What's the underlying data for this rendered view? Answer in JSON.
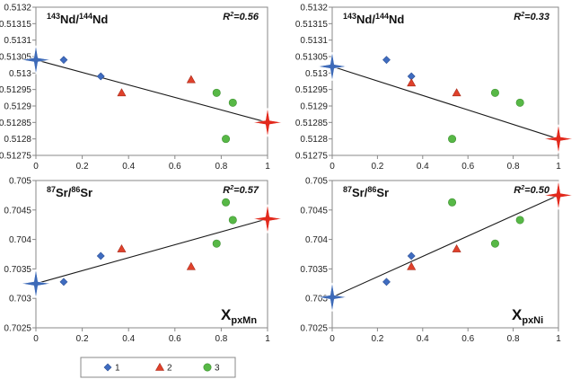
{
  "colors": {
    "series1": "#3f6cc0",
    "series2": "#e0412b",
    "series3": "#57b846",
    "star_endmember": "#3d6ab8",
    "star_other": "#e2291c",
    "line": "#1a1a1a",
    "frame": "#888888"
  },
  "legend": {
    "placement": "bottom-center",
    "items": [
      {
        "label": "1",
        "marker": "diamond"
      },
      {
        "label": "2",
        "marker": "triangle"
      },
      {
        "label": "3",
        "marker": "circle"
      }
    ]
  },
  "chart_data": [
    {
      "type": "scatter",
      "title_parts": {
        "pre1": "143",
        "mid": "Nd/",
        "pre2": "144",
        "post": "Nd"
      },
      "r2": "R2=0.56",
      "xlabel": "",
      "xlim": [
        0,
        1
      ],
      "ylim": [
        0.51275,
        0.5132
      ],
      "x_ticks": [
        "0",
        "0.2",
        "0.4",
        "0.6",
        "0.8",
        "1"
      ],
      "y_ticks": [
        "0.51275",
        "0.5128",
        "0.51285",
        "0.5129",
        "0.51295",
        "0.513",
        "0.51305",
        "0.5131",
        "0.51315",
        "0.5132"
      ],
      "series": [
        {
          "marker": "diamond",
          "points": [
            [
              0.12,
              0.51304
            ],
            [
              0.28,
              0.51299
            ]
          ]
        },
        {
          "marker": "triangle",
          "points": [
            [
              0.37,
              0.51294
            ],
            [
              0.67,
              0.51298
            ]
          ]
        },
        {
          "marker": "circle",
          "points": [
            [
              0.78,
              0.51294
            ],
            [
              0.85,
              0.51291
            ],
            [
              0.82,
              0.5128
            ]
          ]
        }
      ],
      "stars": [
        {
          "x": 0,
          "y": 0.51304,
          "kind": "blue"
        },
        {
          "x": 1,
          "y": 0.51285,
          "kind": "red"
        }
      ],
      "trend": {
        "x": [
          0,
          1
        ],
        "y": [
          0.51304,
          0.51285
        ]
      }
    },
    {
      "type": "scatter",
      "title_parts": {
        "pre1": "143",
        "mid": "Nd/",
        "pre2": "144",
        "post": "Nd"
      },
      "r2": "R2=0.33",
      "xlabel": "",
      "xlim": [
        0,
        1
      ],
      "ylim": [
        0.51275,
        0.5132
      ],
      "x_ticks": [
        "0",
        "0.2",
        "0.4",
        "0.6",
        "0.8",
        "1"
      ],
      "y_ticks": [
        "0.51275",
        "0.5128",
        "0.51285",
        "0.5129",
        "0.51295",
        "0.513",
        "0.51305",
        "0.5131",
        "0.51315",
        "0.5132"
      ],
      "series": [
        {
          "marker": "diamond",
          "points": [
            [
              0.24,
              0.51304
            ],
            [
              0.35,
              0.51299
            ]
          ]
        },
        {
          "marker": "triangle",
          "points": [
            [
              0.35,
              0.51297
            ],
            [
              0.55,
              0.51294
            ]
          ]
        },
        {
          "marker": "circle",
          "points": [
            [
              0.53,
              0.5128
            ],
            [
              0.72,
              0.51294
            ],
            [
              0.83,
              0.51291
            ]
          ]
        }
      ],
      "stars": [
        {
          "x": 0,
          "y": 0.51302,
          "kind": "blue"
        },
        {
          "x": 1,
          "y": 0.5128,
          "kind": "red"
        }
      ],
      "trend": {
        "x": [
          0,
          1
        ],
        "y": [
          0.51302,
          0.5128
        ]
      }
    },
    {
      "type": "scatter",
      "title_parts": {
        "pre1": "87",
        "mid": "Sr/",
        "pre2": "86",
        "post": "Sr"
      },
      "r2": "R2=0.57",
      "xlabel": {
        "main": "X",
        "sub": "pxMn"
      },
      "xlim": [
        0,
        1
      ],
      "ylim": [
        0.7025,
        0.705
      ],
      "x_ticks": [
        "0",
        "0.2",
        "0.4",
        "0.6",
        "0.8",
        "1"
      ],
      "y_ticks": [
        "0.7025",
        "0.703",
        "0.7035",
        "0.704",
        "0.7045",
        "0.705"
      ],
      "series": [
        {
          "marker": "diamond",
          "points": [
            [
              0.12,
              0.70328
            ],
            [
              0.28,
              0.70372
            ]
          ]
        },
        {
          "marker": "triangle",
          "points": [
            [
              0.37,
              0.70384
            ],
            [
              0.67,
              0.70354
            ]
          ]
        },
        {
          "marker": "circle",
          "points": [
            [
              0.78,
              0.70393
            ],
            [
              0.82,
              0.70463
            ],
            [
              0.85,
              0.70433
            ]
          ]
        }
      ],
      "stars": [
        {
          "x": 0,
          "y": 0.70325,
          "kind": "blue"
        },
        {
          "x": 1,
          "y": 0.70435,
          "kind": "red"
        }
      ],
      "trend": {
        "x": [
          0,
          1
        ],
        "y": [
          0.70325,
          0.70435
        ]
      }
    },
    {
      "type": "scatter",
      "title_parts": {
        "pre1": "87",
        "mid": "Sr/",
        "pre2": "86",
        "post": "Sr"
      },
      "r2": "R2=0.50",
      "xlabel": {
        "main": "X",
        "sub": "pxNi"
      },
      "xlim": [
        0,
        1
      ],
      "ylim": [
        0.7025,
        0.705
      ],
      "x_ticks": [
        "0",
        "0.2",
        "0.4",
        "0.6",
        "0.8",
        "1"
      ],
      "y_ticks": [
        "0.7025",
        "0.703",
        "0.7035",
        "0.704",
        "0.7045",
        "0.705"
      ],
      "series": [
        {
          "marker": "diamond",
          "points": [
            [
              0.24,
              0.70328
            ],
            [
              0.35,
              0.70372
            ]
          ]
        },
        {
          "marker": "triangle",
          "points": [
            [
              0.35,
              0.70354
            ],
            [
              0.55,
              0.70384
            ]
          ]
        },
        {
          "marker": "circle",
          "points": [
            [
              0.53,
              0.70463
            ],
            [
              0.72,
              0.70393
            ],
            [
              0.83,
              0.70433
            ]
          ]
        }
      ],
      "stars": [
        {
          "x": 0,
          "y": 0.70302,
          "kind": "blue"
        },
        {
          "x": 1,
          "y": 0.70475,
          "kind": "red"
        }
      ],
      "trend": {
        "x": [
          0,
          1
        ],
        "y": [
          0.70302,
          0.70475
        ]
      }
    }
  ]
}
